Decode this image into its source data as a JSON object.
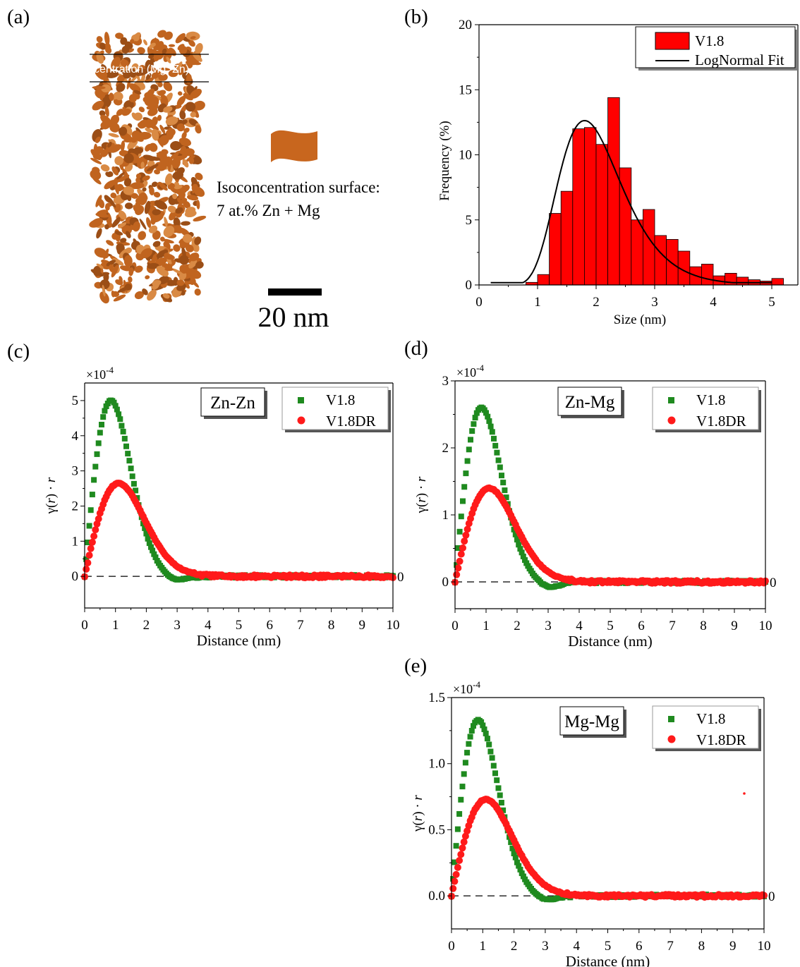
{
  "panel_labels": {
    "a": "(a)",
    "b": "(b)",
    "c": "(c)",
    "d": "(d)",
    "e": "(e)"
  },
  "panel_a": {
    "overlay_text": "centration (Mg, Zn)",
    "iso_label_line1": "Isoconcentration  surface:",
    "iso_label_line2": "7 at.% Zn + Mg",
    "scale_bar_label": "20 nm",
    "colors": {
      "precipitate": "#c0641f",
      "swatch": "#c8661e"
    }
  },
  "chart_data": [
    {
      "id": "b",
      "type": "bar",
      "xlabel": "Size (nm)",
      "ylabel": "Frequency (%)",
      "xlim": [
        0,
        5.3
      ],
      "ylim": [
        0,
        20
      ],
      "xticks": [
        0,
        1,
        2,
        3,
        4,
        5
      ],
      "yticks": [
        0,
        5,
        10,
        15,
        20
      ],
      "bin_width": 0.2,
      "series": [
        {
          "name": "V1.8",
          "color": "#ff0000",
          "x": [
            0.8,
            1.0,
            1.2,
            1.4,
            1.6,
            1.8,
            2.0,
            2.2,
            2.4,
            2.6,
            2.8,
            3.0,
            3.2,
            3.4,
            3.6,
            3.8,
            4.0,
            4.2,
            4.4,
            4.6,
            4.8,
            5.0
          ],
          "values": [
            0.2,
            0.8,
            5.5,
            7.2,
            12.0,
            12.1,
            10.8,
            14.4,
            9.0,
            5.0,
            5.8,
            3.8,
            3.5,
            2.6,
            1.4,
            1.6,
            0.7,
            0.9,
            0.6,
            0.4,
            0.3,
            0.5
          ]
        },
        {
          "name": "LogNormal Fit",
          "type": "line",
          "color": "#000000",
          "mu": 0.6796,
          "sigma": 0.3,
          "peak": 12.63,
          "x_start": 0.2,
          "x_end": 5.0
        }
      ]
    },
    {
      "id": "c",
      "type": "scatter",
      "annotation": "Zn-Zn",
      "multiplier": "×10",
      "multiplier_exp": "-4",
      "xlabel": "Distance (nm)",
      "ylabel_base": "γ(",
      "ylabel_var": "r",
      "ylabel_mid": ") · ",
      "ylabel_var2": "r",
      "right_zero": "0",
      "xlim": [
        0,
        10
      ],
      "ylim": [
        -0.9,
        5.5
      ],
      "xticks": [
        0,
        1,
        2,
        3,
        4,
        5,
        6,
        7,
        8,
        9,
        10
      ],
      "yticks": [
        0,
        1,
        2,
        3,
        4,
        5
      ],
      "yticklabels": [
        "0",
        "1",
        "2",
        "3",
        "4",
        "5"
      ],
      "series": [
        {
          "name": "V1.8",
          "marker": "square",
          "color": "#1f8a1f",
          "amp": 5.0,
          "peak": 0.85,
          "width": 0.6,
          "dip_amp": -0.15,
          "dip_center": 2.9,
          "dip_width": 0.35
        },
        {
          "name": "V1.8DR",
          "marker": "circle",
          "color": "#ff1a1a",
          "amp": 2.65,
          "peak": 1.1,
          "width": 0.78,
          "dip_amp": 0,
          "dip_center": 3.0,
          "dip_width": 0.4
        }
      ]
    },
    {
      "id": "d",
      "type": "scatter",
      "annotation": "Zn-Mg",
      "multiplier": "×10",
      "multiplier_exp": "-4",
      "xlabel": "Distance (nm)",
      "ylabel_base": "γ(",
      "ylabel_var": "r",
      "ylabel_mid": ") · ",
      "ylabel_var2": "r",
      "right_zero": "0",
      "xlim": [
        0,
        10
      ],
      "ylim": [
        -0.4,
        3.0
      ],
      "xticks": [
        0,
        1,
        2,
        3,
        4,
        5,
        6,
        7,
        8,
        9,
        10
      ],
      "yticks": [
        0,
        1,
        2,
        3
      ],
      "yticklabels": [
        "0",
        "1",
        "2",
        "3"
      ],
      "series": [
        {
          "name": "V1.8",
          "marker": "square",
          "color": "#1f8a1f",
          "amp": 2.6,
          "peak": 0.85,
          "width": 0.62,
          "dip_amp": -0.1,
          "dip_center": 3.0,
          "dip_width": 0.35
        },
        {
          "name": "V1.8DR",
          "marker": "circle",
          "color": "#ff1a1a",
          "amp": 1.4,
          "peak": 1.1,
          "width": 0.8,
          "dip_amp": 0,
          "dip_center": 3.0,
          "dip_width": 0.4
        }
      ]
    },
    {
      "id": "e",
      "type": "scatter",
      "annotation": "Mg-Mg",
      "multiplier": "×10",
      "multiplier_exp": "-4",
      "xlabel": "Distance (nm)",
      "ylabel_base": "γ(",
      "ylabel_var": "r",
      "ylabel_mid": ") · ",
      "ylabel_var2": "r",
      "right_zero": "0",
      "xlim": [
        0,
        10
      ],
      "ylim": [
        -0.25,
        1.5
      ],
      "xticks": [
        0,
        1,
        2,
        3,
        4,
        5,
        6,
        7,
        8,
        9,
        10
      ],
      "yticks": [
        0.0,
        0.5,
        1.0,
        1.5
      ],
      "yticklabels": [
        "0.0",
        "0.5",
        "1.0",
        "1.5"
      ],
      "series": [
        {
          "name": "V1.8",
          "marker": "square",
          "color": "#1f8a1f",
          "amp": 1.33,
          "peak": 0.85,
          "width": 0.6,
          "dip_amp": -0.04,
          "dip_center": 3.0,
          "dip_width": 0.35
        },
        {
          "name": "V1.8DR",
          "marker": "circle",
          "color": "#ff1a1a",
          "amp": 0.73,
          "peak": 1.1,
          "width": 0.8,
          "dip_amp": 0,
          "dip_center": 3.0,
          "dip_width": 0.4
        }
      ]
    }
  ]
}
